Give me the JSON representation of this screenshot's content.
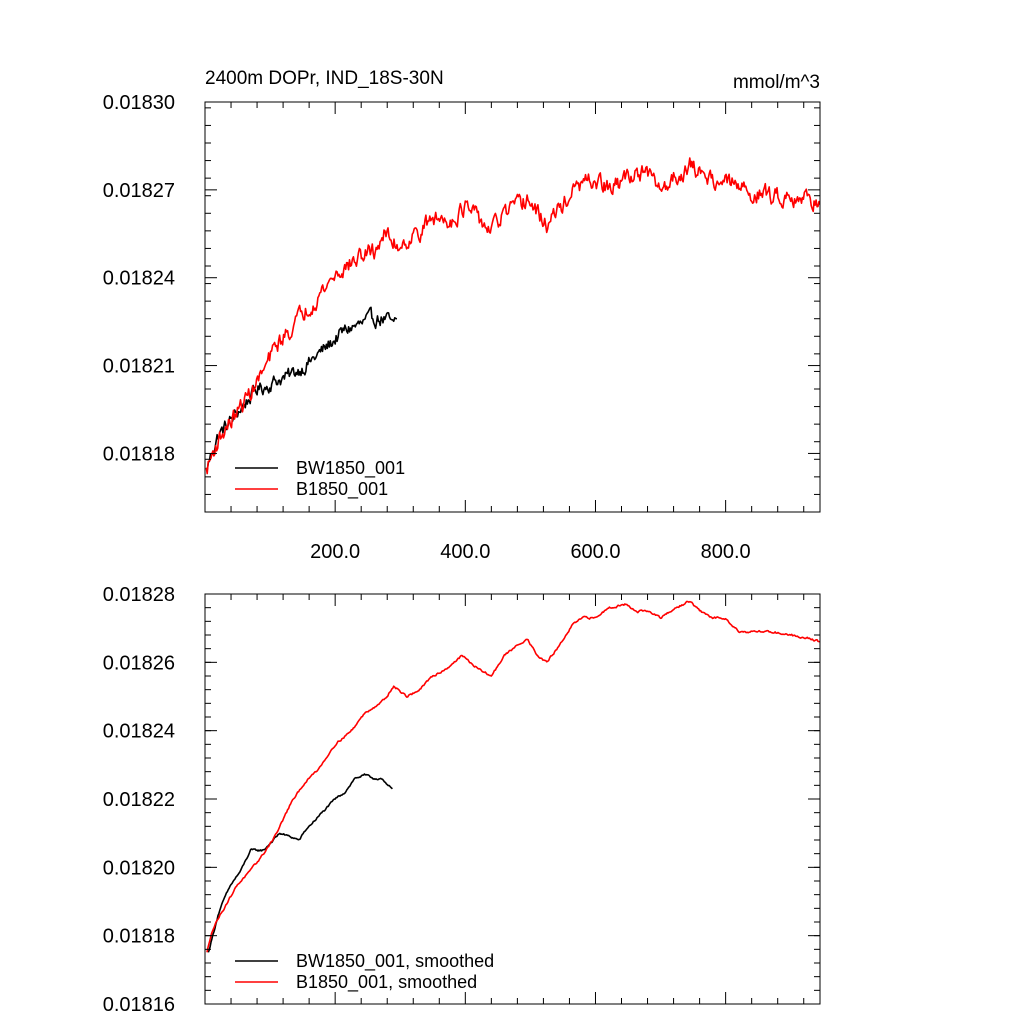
{
  "chart_data": [
    {
      "type": "line",
      "title": "2400m DOPr, IND_18S-30N",
      "subtitle": "mmol/m^3",
      "xlim": [
        0,
        945
      ],
      "ylim": [
        0.01816,
        0.0183
      ],
      "x_ticks": [
        200,
        400,
        600,
        800
      ],
      "x_tick_labels": [
        "200.0",
        "400.0",
        "600.0",
        "800.0"
      ],
      "y_ticks": [
        0.01818,
        0.01821,
        0.01824,
        0.01827,
        0.0183
      ],
      "y_tick_labels": [
        "0.01818",
        "0.01821",
        "0.01824",
        "0.01827",
        "0.01830"
      ],
      "legend": {
        "placement": "bottom-left"
      },
      "series": [
        {
          "name": "BW1850_001",
          "color": "#000000",
          "noise": 4.5e-06,
          "x": [
            2,
            10,
            20,
            35,
            50,
            65,
            80,
            95,
            110,
            125,
            140,
            155,
            170,
            185,
            200,
            215,
            225,
            240,
            255,
            265,
            275,
            285,
            290,
            295
          ],
          "y": [
            0.018174,
            0.01818,
            0.018186,
            0.01819,
            0.018194,
            0.018198,
            0.018202,
            0.018203,
            0.018205,
            0.018206,
            0.018208,
            0.01821,
            0.018213,
            0.018216,
            0.018219,
            0.018222,
            0.018223,
            0.018224,
            0.018226,
            0.018226,
            0.018226,
            0.018225,
            0.018223,
            0.018226
          ]
        },
        {
          "name": "B1850_001",
          "color": "#ff0000",
          "noise": 5.5e-06,
          "x": [
            2,
            15,
            30,
            50,
            70,
            90,
            110,
            130,
            150,
            175,
            200,
            225,
            245,
            260,
            275,
            295,
            320,
            350,
            380,
            400,
            420,
            440,
            460,
            480,
            495,
            510,
            525,
            540,
            560,
            580,
            600,
            625,
            650,
            670,
            685,
            700,
            720,
            745,
            760,
            790,
            810,
            840,
            870,
            900,
            930,
            945
          ],
          "y": [
            0.018174,
            0.018182,
            0.018188,
            0.018194,
            0.018201,
            0.018208,
            0.018217,
            0.018222,
            0.018228,
            0.018234,
            0.018241,
            0.018245,
            0.018248,
            0.018249,
            0.018255,
            0.018251,
            0.018254,
            0.01826,
            0.01826,
            0.018264,
            0.01826,
            0.018256,
            0.018262,
            0.018264,
            0.018267,
            0.018262,
            0.018258,
            0.018262,
            0.018268,
            0.018272,
            0.018273,
            0.01827,
            0.018275,
            0.018276,
            0.018274,
            0.01827,
            0.018274,
            0.018278,
            0.018276,
            0.018273,
            0.018272,
            0.018269,
            0.018268,
            0.018268,
            0.018267,
            0.018265
          ]
        }
      ]
    },
    {
      "type": "line",
      "title": "",
      "xlim": [
        0,
        945
      ],
      "ylim": [
        0.01816,
        0.01828
      ],
      "x_ticks": [
        200,
        400,
        600,
        800
      ],
      "x_tick_labels": [],
      "y_ticks": [
        0.01816,
        0.01818,
        0.0182,
        0.01822,
        0.01824,
        0.01826,
        0.01828
      ],
      "y_tick_labels": [
        "0.01816",
        "0.01818",
        "0.01820",
        "0.01822",
        "0.01824",
        "0.01826",
        "0.01828"
      ],
      "legend": {
        "placement": "bottom-left"
      },
      "series": [
        {
          "name": "BW1850_001, smoothed",
          "color": "#000000",
          "noise": 6e-07,
          "x": [
            5,
            12,
            20,
            30,
            40,
            55,
            70,
            80,
            90,
            100,
            115,
            130,
            145,
            155,
            165,
            175,
            185,
            200,
            215,
            230,
            245,
            260,
            270,
            280,
            288
          ],
          "y": [
            0.018175,
            0.01818,
            0.018186,
            0.018191,
            0.018195,
            0.018199,
            0.018205,
            0.018205,
            0.018205,
            0.018207,
            0.01821,
            0.018209,
            0.018208,
            0.018211,
            0.018213,
            0.018215,
            0.018217,
            0.01822,
            0.018222,
            0.018226,
            0.018227,
            0.018226,
            0.018226,
            0.018224,
            0.018223
          ]
        },
        {
          "name": "B1850_001, smoothed",
          "color": "#ff0000",
          "noise": 6e-07,
          "x": [
            3,
            10,
            20,
            35,
            50,
            70,
            90,
            110,
            130,
            150,
            175,
            200,
            225,
            245,
            260,
            275,
            290,
            310,
            330,
            350,
            370,
            395,
            420,
            440,
            460,
            480,
            495,
            510,
            525,
            545,
            565,
            580,
            600,
            620,
            645,
            665,
            680,
            700,
            725,
            745,
            760,
            780,
            800,
            820,
            830,
            850,
            870,
            900,
            930,
            945
          ],
          "y": [
            0.018175,
            0.018181,
            0.018185,
            0.01819,
            0.018195,
            0.018199,
            0.018204,
            0.01821,
            0.018218,
            0.018224,
            0.018229,
            0.018236,
            0.01824,
            0.018245,
            0.018247,
            0.018249,
            0.018253,
            0.01825,
            0.018252,
            0.018256,
            0.018258,
            0.018262,
            0.018258,
            0.018256,
            0.018262,
            0.018265,
            0.018267,
            0.018262,
            0.01826,
            0.018265,
            0.018271,
            0.018273,
            0.018273,
            0.018276,
            0.018277,
            0.018275,
            0.018275,
            0.018273,
            0.018276,
            0.018278,
            0.018275,
            0.018273,
            0.018273,
            0.018269,
            0.018269,
            0.018269,
            0.018269,
            0.018268,
            0.018267,
            0.018266
          ]
        }
      ]
    }
  ]
}
